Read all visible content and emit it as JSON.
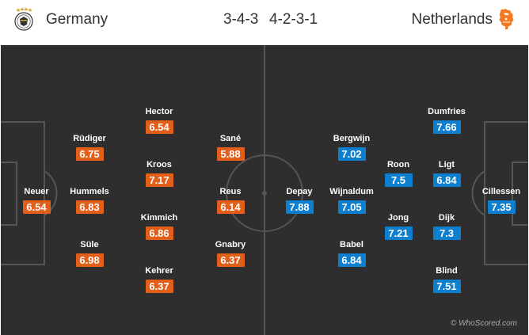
{
  "home": {
    "team": "Germany",
    "formation": "3-4-3",
    "color": "#e35e19",
    "players": [
      {
        "name": "Neuer",
        "rating": "6.54"
      },
      {
        "name": "Rüdiger",
        "rating": "6.75"
      },
      {
        "name": "Hummels",
        "rating": "6.83"
      },
      {
        "name": "Süle",
        "rating": "6.98"
      },
      {
        "name": "Hector",
        "rating": "6.54"
      },
      {
        "name": "Kroos",
        "rating": "7.17"
      },
      {
        "name": "Kimmich",
        "rating": "6.86"
      },
      {
        "name": "Kehrer",
        "rating": "6.37"
      },
      {
        "name": "Sané",
        "rating": "5.88"
      },
      {
        "name": "Reus",
        "rating": "6.14"
      },
      {
        "name": "Gnabry",
        "rating": "6.37"
      }
    ]
  },
  "away": {
    "team": "Netherlands",
    "formation": "4-2-3-1",
    "color": "#0e7fce",
    "players": [
      {
        "name": "Depay",
        "rating": "7.88"
      },
      {
        "name": "Bergwijn",
        "rating": "7.02"
      },
      {
        "name": "Wijnaldum",
        "rating": "7.05"
      },
      {
        "name": "Babel",
        "rating": "6.84"
      },
      {
        "name": "Roon",
        "rating": "7.5"
      },
      {
        "name": "Jong",
        "rating": "7.21"
      },
      {
        "name": "Dumfries",
        "rating": "7.66"
      },
      {
        "name": "Ligt",
        "rating": "6.84"
      },
      {
        "name": "Dijk",
        "rating": "7.3"
      },
      {
        "name": "Blind",
        "rating": "7.51"
      },
      {
        "name": "Cillessen",
        "rating": "7.35"
      }
    ]
  },
  "watermark": "© WhoScored.com"
}
